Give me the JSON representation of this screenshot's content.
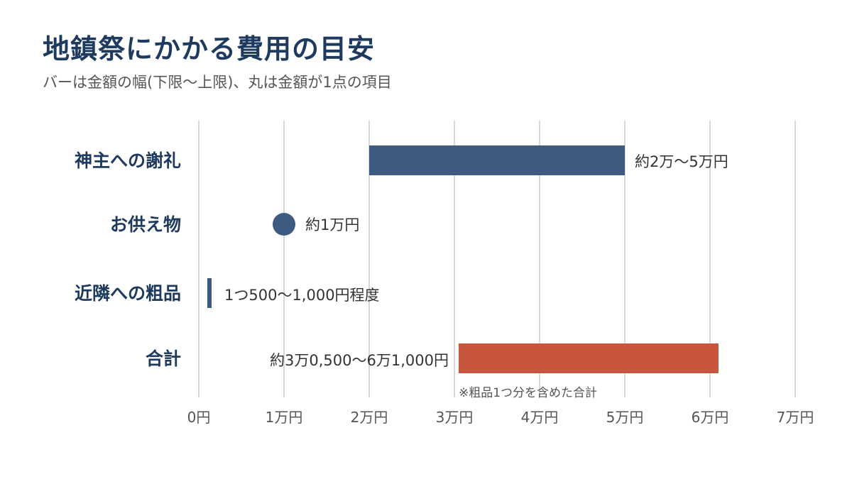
{
  "title": "地鎮祭にかかる費用の目安",
  "subtitle": "バーは金額の幅(下限〜上限)、丸は金額が1点の項目",
  "chart_data": {
    "type": "bar",
    "orientation": "horizontal",
    "style": "range-bar with dot markers",
    "xlim": [
      0,
      70000
    ],
    "x_ticks": [
      0,
      10000,
      20000,
      30000,
      40000,
      50000,
      60000,
      70000
    ],
    "x_tick_labels": [
      "0円",
      "1万円",
      "2万円",
      "3万円",
      "4万円",
      "5万円",
      "6万円",
      "7万円"
    ],
    "grid": true,
    "categories": [
      "神主への謝礼",
      "お供え物",
      "近隣への粗品",
      "合計"
    ],
    "items": [
      {
        "category": "神主への謝礼",
        "kind": "range",
        "low": 20000,
        "high": 50000,
        "label": "約2万〜5万円",
        "color": "#3d5a80"
      },
      {
        "category": "お供え物",
        "kind": "point",
        "value": 10000,
        "label": "約1万円",
        "color": "#3d5a80"
      },
      {
        "category": "近隣への粗品",
        "kind": "range",
        "low": 500,
        "high": 1000,
        "label": "1つ500〜1,000円程度",
        "color": "#3d5a80"
      },
      {
        "category": "合計",
        "kind": "range",
        "low": 30500,
        "high": 61000,
        "label": "約3万0,500〜6万1,000円",
        "color": "#c8553d",
        "note": "※粗品1つ分を含めた合計"
      }
    ]
  }
}
